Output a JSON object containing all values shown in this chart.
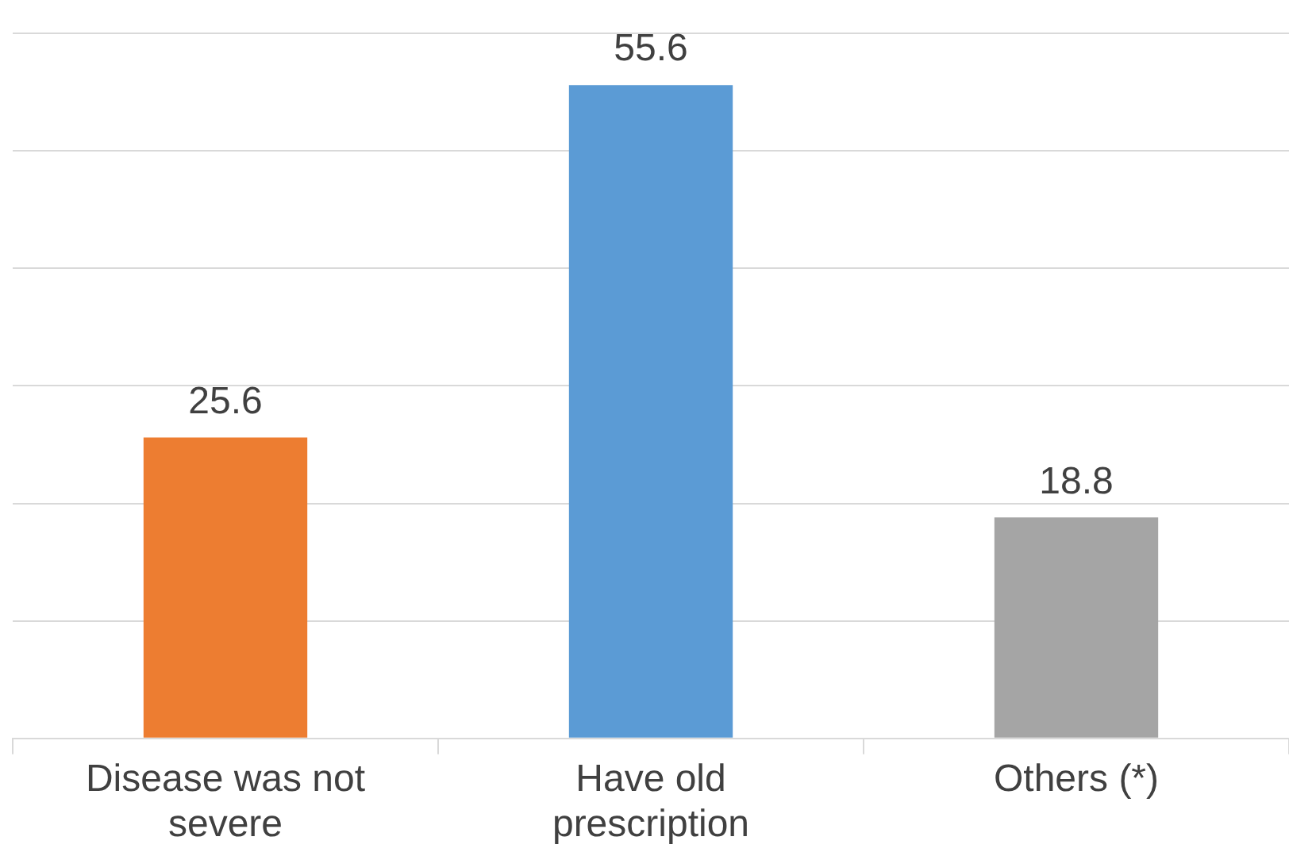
{
  "chart_data": {
    "type": "bar",
    "categories": [
      "Disease was not severe",
      "Have old prescription",
      "Others (*)"
    ],
    "values": [
      25.6,
      55.6,
      18.8
    ],
    "colors": [
      "#ed7d31",
      "#5b9bd5",
      "#a5a5a5"
    ],
    "grid": "y",
    "tick_labels": "x",
    "data_labels": true,
    "legend": false
  }
}
